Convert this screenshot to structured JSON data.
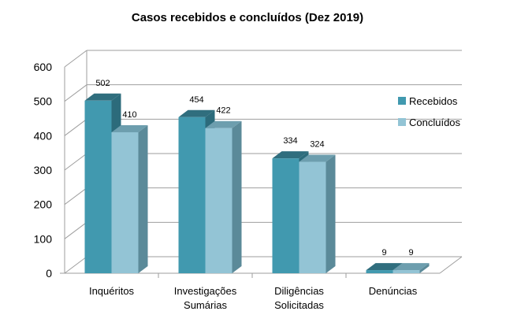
{
  "chart_data": {
    "type": "bar",
    "title": "Casos recebidos e concluídos (Dez 2019)",
    "categories": [
      [
        "Inquéritos"
      ],
      [
        "Investigações",
        "Sumárias"
      ],
      [
        "Diligências",
        "Solicitadas"
      ],
      [
        "Denúncias"
      ]
    ],
    "series": [
      {
        "name": "Recebidos",
        "values": [
          502,
          454,
          334,
          9
        ]
      },
      {
        "name": "Concluídos",
        "values": [
          410,
          422,
          324,
          9
        ]
      }
    ],
    "ylim": [
      0,
      600
    ],
    "yticks": [
      "0",
      "100",
      "200",
      "300",
      "400",
      "500",
      "600"
    ],
    "grid": true,
    "legend_position": "right",
    "colors": {
      "series": [
        "#4199AF",
        "#93C4D5"
      ],
      "series_side": [
        "#2C6B7B",
        "#5B8A99"
      ],
      "series_top": [
        "#306E7E",
        "#6D9EAE"
      ],
      "grid": "#9E9E9E"
    }
  }
}
